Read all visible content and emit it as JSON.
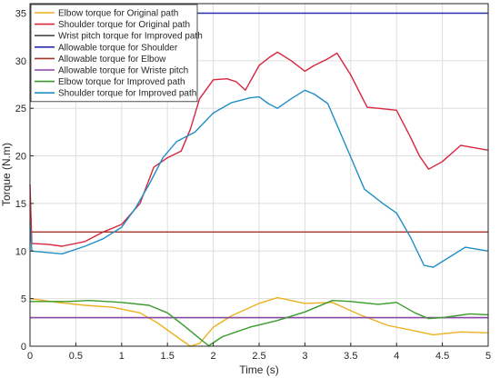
{
  "chart_data": {
    "type": "line",
    "title": "",
    "xlabel": "Time (s)",
    "ylabel": "Torque (N.m)",
    "xlim": [
      0,
      5
    ],
    "ylim": [
      0,
      36
    ],
    "xticks": [
      0,
      0.5,
      1,
      1.5,
      2,
      2.5,
      3,
      3.5,
      4,
      4.5,
      5
    ],
    "xtick_labels": [
      "0",
      "0.5",
      "1",
      "1.5",
      "2",
      "2.5",
      "3",
      "3.5",
      "4",
      "4.5",
      "5"
    ],
    "yticks": [
      0,
      5,
      10,
      15,
      20,
      25,
      30,
      35
    ],
    "ytick_labels": [
      "0",
      "5",
      "10",
      "15",
      "20",
      "25",
      "30",
      "35"
    ],
    "grid": true,
    "legend_position": "top-left",
    "series": [
      {
        "name": "Elbow torque for Original path",
        "color": "#EDB120",
        "points": [
          [
            0,
            5.0
          ],
          [
            0.3,
            4.6
          ],
          [
            0.6,
            4.3
          ],
          [
            0.9,
            4.1
          ],
          [
            1.2,
            3.5
          ],
          [
            1.4,
            2.4
          ],
          [
            1.6,
            1.0
          ],
          [
            1.75,
            0.0
          ],
          [
            1.85,
            0.3
          ],
          [
            2.0,
            2.0
          ],
          [
            2.2,
            3.2
          ],
          [
            2.5,
            4.5
          ],
          [
            2.7,
            5.1
          ],
          [
            3.0,
            4.5
          ],
          [
            3.3,
            4.6
          ],
          [
            3.6,
            3.3
          ],
          [
            3.9,
            2.2
          ],
          [
            4.2,
            1.6
          ],
          [
            4.4,
            1.2
          ],
          [
            4.7,
            1.5
          ],
          [
            5.0,
            1.4
          ]
        ]
      },
      {
        "name": "Shoulder torque for Original path",
        "color": "#D7263D",
        "points": [
          [
            0,
            17.0
          ],
          [
            0.02,
            10.8
          ],
          [
            0.2,
            10.7
          ],
          [
            0.35,
            10.5
          ],
          [
            0.6,
            11.0
          ],
          [
            0.8,
            12.0
          ],
          [
            1.0,
            12.8
          ],
          [
            1.2,
            15.0
          ],
          [
            1.35,
            18.8
          ],
          [
            1.5,
            19.8
          ],
          [
            1.65,
            20.5
          ],
          [
            1.75,
            22.8
          ],
          [
            1.85,
            26.0
          ],
          [
            2.0,
            28.0
          ],
          [
            2.15,
            28.1
          ],
          [
            2.25,
            27.8
          ],
          [
            2.35,
            26.9
          ],
          [
            2.5,
            29.5
          ],
          [
            2.62,
            30.4
          ],
          [
            2.7,
            30.9
          ],
          [
            2.85,
            30.0
          ],
          [
            3.0,
            28.9
          ],
          [
            3.1,
            29.5
          ],
          [
            3.25,
            30.2
          ],
          [
            3.35,
            30.8
          ],
          [
            3.5,
            28.5
          ],
          [
            3.68,
            25.1
          ],
          [
            3.8,
            25.0
          ],
          [
            4.0,
            24.8
          ],
          [
            4.15,
            22.0
          ],
          [
            4.25,
            20.0
          ],
          [
            4.35,
            18.6
          ],
          [
            4.5,
            19.4
          ],
          [
            4.7,
            21.1
          ],
          [
            5.0,
            20.6
          ]
        ]
      },
      {
        "name": "Wrist pitch torque for Improved path",
        "color": "#4A4A4A",
        "points": [
          [
            0,
            3.0
          ],
          [
            5.0,
            3.0
          ]
        ]
      },
      {
        "name": "Allowable torque for Shoulder",
        "color": "#2B2BB0",
        "points": [
          [
            0,
            35.0
          ],
          [
            5.0,
            35.0
          ]
        ]
      },
      {
        "name": "Allowable torque for Elbow",
        "color": "#A0342A",
        "points": [
          [
            0,
            12.0
          ],
          [
            5.0,
            12.0
          ]
        ]
      },
      {
        "name": "Allowable torque for Wriste pitch",
        "color": "#8E44AD",
        "points": [
          [
            0,
            3.0
          ],
          [
            5.0,
            3.0
          ]
        ]
      },
      {
        "name": "Elbow torque for Improved path",
        "color": "#3A9A2C",
        "points": [
          [
            0,
            4.7
          ],
          [
            0.4,
            4.7
          ],
          [
            0.65,
            4.8
          ],
          [
            1.0,
            4.6
          ],
          [
            1.3,
            4.3
          ],
          [
            1.5,
            3.5
          ],
          [
            1.7,
            2.0
          ],
          [
            1.85,
            0.8
          ],
          [
            1.95,
            0.05
          ],
          [
            2.1,
            1.0
          ],
          [
            2.4,
            2.0
          ],
          [
            2.7,
            2.7
          ],
          [
            3.0,
            3.6
          ],
          [
            3.3,
            4.8
          ],
          [
            3.5,
            4.7
          ],
          [
            3.8,
            4.4
          ],
          [
            4.0,
            4.6
          ],
          [
            4.2,
            3.5
          ],
          [
            4.35,
            2.9
          ],
          [
            4.5,
            3.0
          ],
          [
            4.8,
            3.4
          ],
          [
            5.0,
            3.3
          ]
        ]
      },
      {
        "name": "Shoulder torque for Improved path",
        "color": "#1F8FC6",
        "points": [
          [
            0,
            13.0
          ],
          [
            0.02,
            10.0
          ],
          [
            0.35,
            9.7
          ],
          [
            0.6,
            10.5
          ],
          [
            0.8,
            11.3
          ],
          [
            1.0,
            12.5
          ],
          [
            1.15,
            14.5
          ],
          [
            1.3,
            17.0
          ],
          [
            1.45,
            19.8
          ],
          [
            1.6,
            21.5
          ],
          [
            1.8,
            22.5
          ],
          [
            2.0,
            24.5
          ],
          [
            2.2,
            25.6
          ],
          [
            2.4,
            26.1
          ],
          [
            2.5,
            26.2
          ],
          [
            2.6,
            25.5
          ],
          [
            2.7,
            25.0
          ],
          [
            2.85,
            26.0
          ],
          [
            3.0,
            26.9
          ],
          [
            3.1,
            26.5
          ],
          [
            3.25,
            25.5
          ],
          [
            3.45,
            21.0
          ],
          [
            3.65,
            16.5
          ],
          [
            3.85,
            15.0
          ],
          [
            4.0,
            14.0
          ],
          [
            4.15,
            11.5
          ],
          [
            4.3,
            8.5
          ],
          [
            4.4,
            8.3
          ],
          [
            4.6,
            9.5
          ],
          [
            4.75,
            10.4
          ],
          [
            5.0,
            10.0
          ]
        ]
      }
    ]
  }
}
